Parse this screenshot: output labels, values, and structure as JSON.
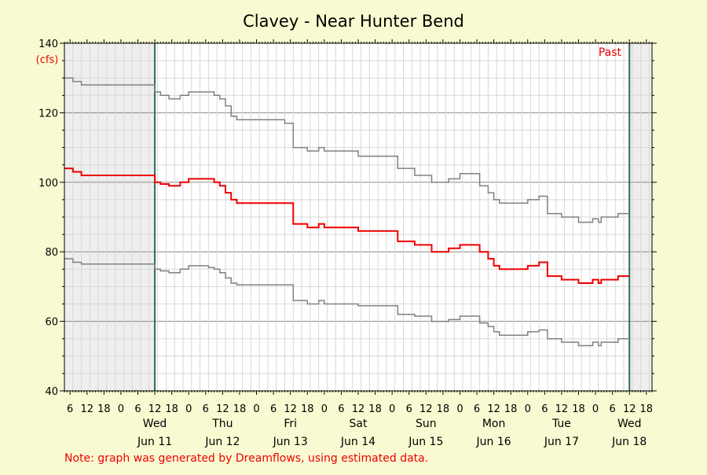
{
  "chart_data": {
    "type": "line",
    "title": "Clavey - Near Hunter Bend",
    "ylabel": "(cfs)",
    "ylim": [
      40,
      140
    ],
    "y_ticks": [
      40,
      60,
      80,
      100,
      120,
      140
    ],
    "x_start": "2025-06-10T04:00",
    "x_end": "2025-06-18T20:00",
    "x_hour_ticks": [
      "6",
      "12",
      "18",
      "0",
      "6",
      "12",
      "18",
      "0",
      "6",
      "12",
      "18",
      "0",
      "6",
      "12",
      "18",
      "0",
      "6",
      "12",
      "18",
      "0",
      "6",
      "12",
      "18",
      "0",
      "6",
      "12",
      "18",
      "0",
      "6",
      "12",
      "18",
      "0",
      "6",
      "12",
      "18"
    ],
    "day_labels": [
      {
        "weekday": "Wed",
        "date": "Jun 11"
      },
      {
        "weekday": "Thu",
        "date": "Jun 12"
      },
      {
        "weekday": "Fri",
        "date": "Jun 13"
      },
      {
        "weekday": "Sat",
        "date": "Jun 14"
      },
      {
        "weekday": "Sun",
        "date": "Jun 15"
      },
      {
        "weekday": "Mon",
        "date": "Jun 16"
      },
      {
        "weekday": "Tue",
        "date": "Jun 17"
      },
      {
        "weekday": "Wed",
        "date": "Jun 18"
      }
    ],
    "grid": true,
    "window_start": "2025-06-11T12:00",
    "window_end": "2025-06-18T12:00",
    "region_label": "Past",
    "note": "Note: graph was generated by Dreamflows, using estimated data.",
    "colors": {
      "main": "#ee0000",
      "band": "#808080",
      "window_line": "#2e6b55",
      "shade": "#eeeeee",
      "note": "#ee0000",
      "ylabel": "#ee0000"
    },
    "series": [
      {
        "role": "upper",
        "points": [
          [
            "2025-06-10T04:00",
            130
          ],
          [
            "2025-06-10T07:00",
            129
          ],
          [
            "2025-06-10T10:00",
            128
          ],
          [
            "2025-06-11T12:00",
            126
          ],
          [
            "2025-06-11T14:00",
            125
          ],
          [
            "2025-06-11T17:00",
            124
          ],
          [
            "2025-06-11T21:00",
            125
          ],
          [
            "2025-06-12T00:00",
            126
          ],
          [
            "2025-06-12T07:00",
            126
          ],
          [
            "2025-06-12T09:00",
            125
          ],
          [
            "2025-06-12T11:00",
            124
          ],
          [
            "2025-06-12T13:00",
            122
          ],
          [
            "2025-06-12T15:00",
            119
          ],
          [
            "2025-06-12T17:00",
            118
          ],
          [
            "2025-06-13T10:00",
            117
          ],
          [
            "2025-06-13T13:00",
            110
          ],
          [
            "2025-06-13T18:00",
            109
          ],
          [
            "2025-06-13T22:00",
            110
          ],
          [
            "2025-06-14T00:00",
            109
          ],
          [
            "2025-06-14T12:00",
            107.5
          ],
          [
            "2025-06-15T02:00",
            104
          ],
          [
            "2025-06-15T08:00",
            102
          ],
          [
            "2025-06-15T14:00",
            100
          ],
          [
            "2025-06-15T20:00",
            101
          ],
          [
            "2025-06-16T00:00",
            102.5
          ],
          [
            "2025-06-16T07:00",
            99
          ],
          [
            "2025-06-16T10:00",
            97
          ],
          [
            "2025-06-16T12:00",
            95
          ],
          [
            "2025-06-16T14:00",
            94
          ],
          [
            "2025-06-17T00:00",
            95
          ],
          [
            "2025-06-17T04:00",
            96
          ],
          [
            "2025-06-17T07:00",
            91
          ],
          [
            "2025-06-17T12:00",
            90
          ],
          [
            "2025-06-17T18:00",
            88.5
          ],
          [
            "2025-06-17T23:00",
            89.5
          ],
          [
            "2025-06-18T01:00",
            88.5
          ],
          [
            "2025-06-18T02:00",
            90
          ],
          [
            "2025-06-18T08:00",
            91
          ],
          [
            "2025-06-18T12:00",
            91
          ]
        ]
      },
      {
        "role": "main",
        "points": [
          [
            "2025-06-10T04:00",
            104
          ],
          [
            "2025-06-10T07:00",
            103
          ],
          [
            "2025-06-10T10:00",
            102
          ],
          [
            "2025-06-11T12:00",
            100
          ],
          [
            "2025-06-11T14:00",
            99.5
          ],
          [
            "2025-06-11T17:00",
            99
          ],
          [
            "2025-06-11T21:00",
            100
          ],
          [
            "2025-06-12T00:00",
            101
          ],
          [
            "2025-06-12T07:00",
            101
          ],
          [
            "2025-06-12T09:00",
            100
          ],
          [
            "2025-06-12T11:00",
            99
          ],
          [
            "2025-06-12T13:00",
            97
          ],
          [
            "2025-06-12T15:00",
            95
          ],
          [
            "2025-06-12T17:00",
            94
          ],
          [
            "2025-06-13T10:00",
            94
          ],
          [
            "2025-06-13T13:00",
            88
          ],
          [
            "2025-06-13T18:00",
            87
          ],
          [
            "2025-06-13T22:00",
            88
          ],
          [
            "2025-06-14T00:00",
            87
          ],
          [
            "2025-06-14T12:00",
            86
          ],
          [
            "2025-06-15T02:00",
            83
          ],
          [
            "2025-06-15T08:00",
            82
          ],
          [
            "2025-06-15T14:00",
            80
          ],
          [
            "2025-06-15T20:00",
            81
          ],
          [
            "2025-06-16T00:00",
            82
          ],
          [
            "2025-06-16T07:00",
            80
          ],
          [
            "2025-06-16T10:00",
            78
          ],
          [
            "2025-06-16T12:00",
            76
          ],
          [
            "2025-06-16T14:00",
            75
          ],
          [
            "2025-06-17T00:00",
            76
          ],
          [
            "2025-06-17T04:00",
            77
          ],
          [
            "2025-06-17T07:00",
            73
          ],
          [
            "2025-06-17T12:00",
            72
          ],
          [
            "2025-06-17T18:00",
            71
          ],
          [
            "2025-06-17T23:00",
            72
          ],
          [
            "2025-06-18T01:00",
            71
          ],
          [
            "2025-06-18T02:00",
            72
          ],
          [
            "2025-06-18T08:00",
            73
          ],
          [
            "2025-06-18T12:00",
            73
          ]
        ]
      },
      {
        "role": "lower",
        "points": [
          [
            "2025-06-10T04:00",
            78
          ],
          [
            "2025-06-10T07:00",
            77
          ],
          [
            "2025-06-10T10:00",
            76.5
          ],
          [
            "2025-06-11T12:00",
            75
          ],
          [
            "2025-06-11T14:00",
            74.5
          ],
          [
            "2025-06-11T17:00",
            74
          ],
          [
            "2025-06-11T21:00",
            75
          ],
          [
            "2025-06-12T00:00",
            76
          ],
          [
            "2025-06-12T07:00",
            75.5
          ],
          [
            "2025-06-12T09:00",
            75
          ],
          [
            "2025-06-12T11:00",
            74
          ],
          [
            "2025-06-12T13:00",
            72.5
          ],
          [
            "2025-06-12T15:00",
            71
          ],
          [
            "2025-06-12T17:00",
            70.5
          ],
          [
            "2025-06-13T10:00",
            70.5
          ],
          [
            "2025-06-13T13:00",
            66
          ],
          [
            "2025-06-13T18:00",
            65
          ],
          [
            "2025-06-13T22:00",
            66
          ],
          [
            "2025-06-14T00:00",
            65
          ],
          [
            "2025-06-14T12:00",
            64.5
          ],
          [
            "2025-06-15T02:00",
            62
          ],
          [
            "2025-06-15T08:00",
            61.5
          ],
          [
            "2025-06-15T14:00",
            60
          ],
          [
            "2025-06-15T20:00",
            60.5
          ],
          [
            "2025-06-16T00:00",
            61.5
          ],
          [
            "2025-06-16T07:00",
            59.5
          ],
          [
            "2025-06-16T10:00",
            58.5
          ],
          [
            "2025-06-16T12:00",
            57
          ],
          [
            "2025-06-16T14:00",
            56
          ],
          [
            "2025-06-17T00:00",
            57
          ],
          [
            "2025-06-17T04:00",
            57.5
          ],
          [
            "2025-06-17T07:00",
            55
          ],
          [
            "2025-06-17T12:00",
            54
          ],
          [
            "2025-06-17T18:00",
            53
          ],
          [
            "2025-06-17T23:00",
            54
          ],
          [
            "2025-06-18T01:00",
            53
          ],
          [
            "2025-06-18T02:00",
            54
          ],
          [
            "2025-06-18T08:00",
            55
          ],
          [
            "2025-06-18T12:00",
            55
          ]
        ]
      }
    ]
  }
}
